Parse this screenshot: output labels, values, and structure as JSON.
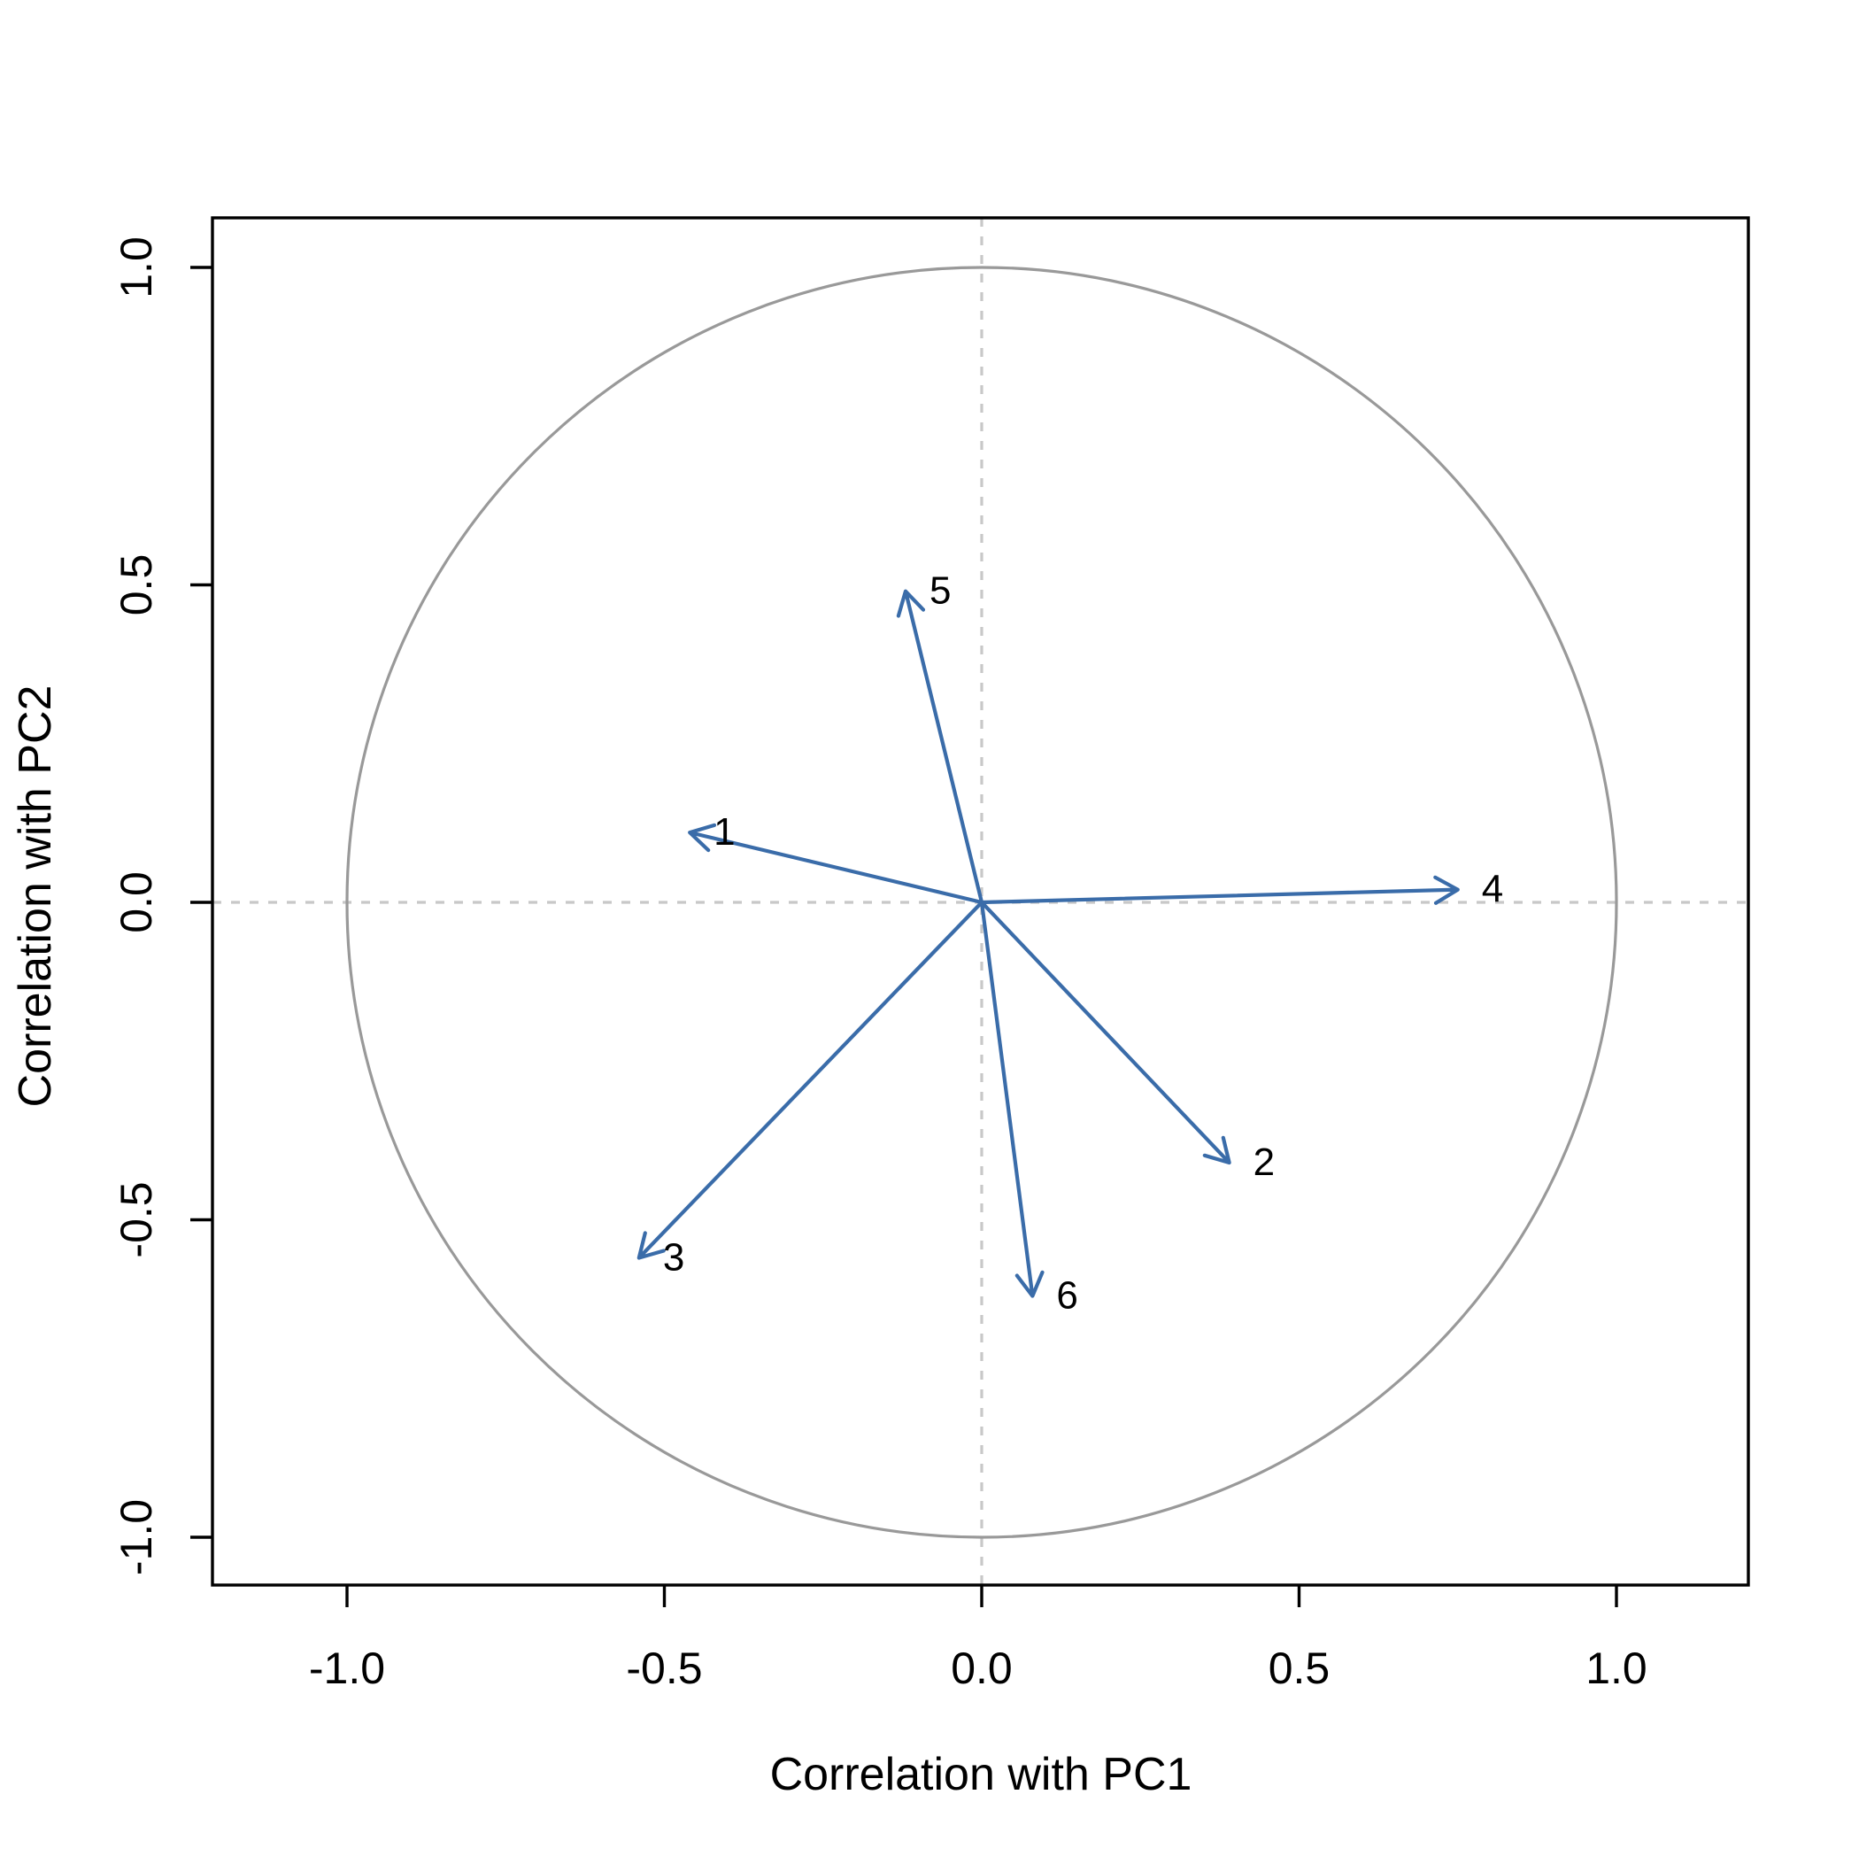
{
  "chart_data": {
    "type": "scatter",
    "subtype": "pca-correlation-circle-arrow-plot",
    "title": "",
    "xlabel": "Correlation with PC1",
    "ylabel": "Correlation with PC2",
    "xlim": [
      -1.21,
      1.21
    ],
    "ylim": [
      -1.08,
      1.08
    ],
    "grid": false,
    "legend": null,
    "xticks": {
      "values": [
        -1.0,
        -0.5,
        0.0,
        0.5,
        1.0
      ],
      "labels": [
        "-1.0",
        "-0.5",
        "0.0",
        "0.5",
        "1.0"
      ]
    },
    "yticks": {
      "values": [
        -1.0,
        -0.5,
        0.0,
        0.5,
        1.0
      ],
      "labels": [
        "-1.0",
        "-0.5",
        "0.0",
        "0.5",
        "1.0"
      ]
    },
    "reference": {
      "unit_circle": {
        "cx": 0,
        "cy": 0,
        "r": 1.0
      },
      "zero_lines": {
        "horizontal_y": 0,
        "vertical_x": 0,
        "style": "dotted"
      }
    },
    "series": [
      {
        "name": "variable-vectors",
        "mark": "arrow",
        "origin": [
          0,
          0
        ],
        "points": [
          {
            "label": "1",
            "x": -0.46,
            "y": 0.11
          },
          {
            "label": "2",
            "x": 0.39,
            "y": -0.41
          },
          {
            "label": "3",
            "x": -0.54,
            "y": -0.56
          },
          {
            "label": "4",
            "x": 0.75,
            "y": 0.02
          },
          {
            "label": "5",
            "x": -0.12,
            "y": 0.49
          },
          {
            "label": "6",
            "x": 0.08,
            "y": -0.62
          }
        ]
      }
    ],
    "colors": {
      "arrow": "#3A6CA9",
      "circle": "#999999",
      "zero_line": "#C8C8C8",
      "axis": "#000000",
      "text": "#000000",
      "background": "#FFFFFF"
    }
  }
}
